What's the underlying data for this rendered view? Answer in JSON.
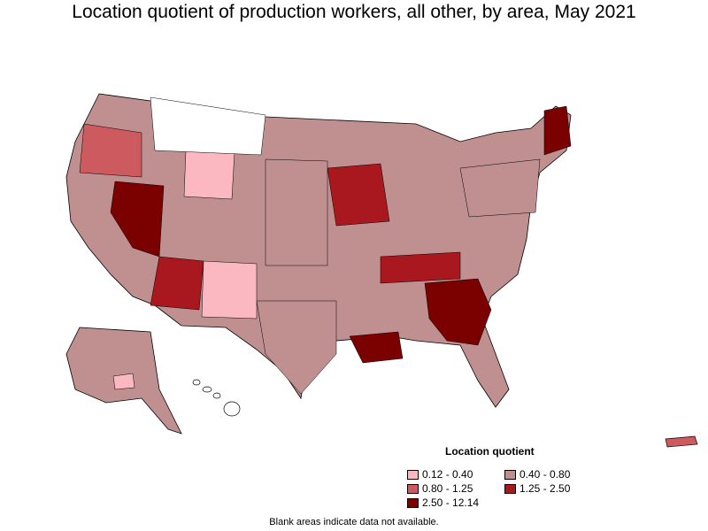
{
  "title": "Location quotient of production workers, all other, by area, May 2021",
  "legend": {
    "title": "Location quotient",
    "items": [
      {
        "label": "0.12 - 0.40",
        "color": "#fcb8c0"
      },
      {
        "label": "0.40 - 0.80",
        "color": "#c09090"
      },
      {
        "label": "0.80 - 1.25",
        "color": "#cc5a5e"
      },
      {
        "label": "1.25 - 2.50",
        "color": "#a8181e"
      },
      {
        "label": "2.50 - 12.14",
        "color": "#7b0000"
      }
    ]
  },
  "footnote": "Blank areas indicate data not available."
}
